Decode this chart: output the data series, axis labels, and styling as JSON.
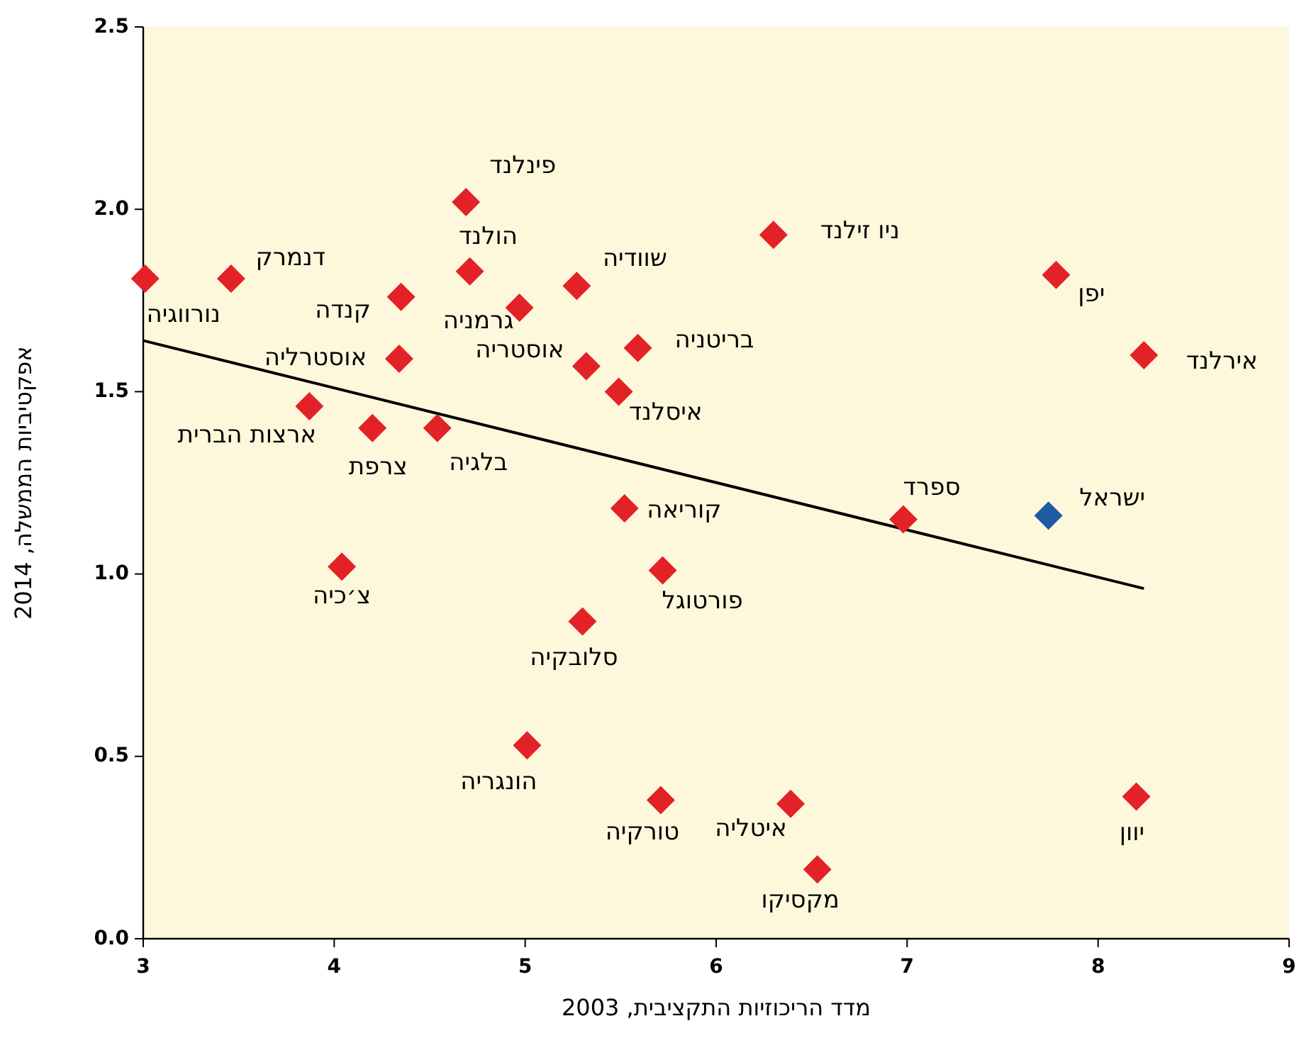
{
  "chart_data": {
    "type": "scatter",
    "xlabel": "מדד הריכוזיות התקציבית, 2003",
    "ylabel": "אפקטיביות הממשלה, 2014",
    "xlim": [
      3,
      9
    ],
    "ylim": [
      0,
      2.5
    ],
    "xticks": [
      3,
      4,
      5,
      6,
      7,
      8,
      9
    ],
    "yticks": [
      {
        "value": 0,
        "label": "0.0"
      },
      {
        "value": 0.5,
        "label": "0.5"
      },
      {
        "value": 1,
        "label": "1.0"
      },
      {
        "value": 1.5,
        "label": "1.5"
      },
      {
        "value": 2,
        "label": "2.0"
      },
      {
        "value": 2.5,
        "label": "2.5"
      }
    ],
    "series": [
      {
        "marker": "diamond",
        "color": "#e32227",
        "x": [
          3.01,
          3.46,
          4.35,
          4.34,
          3.87,
          4.2,
          4.54,
          4.04,
          4.69,
          4.71,
          4.97,
          5.27,
          5.32,
          5.59,
          5.49,
          5.52,
          5.72,
          5.3,
          5.01,
          5.71,
          6.39,
          6.53,
          6.3,
          6.98,
          7.78,
          8.24,
          8.2
        ],
        "values": [
          1.81,
          1.81,
          1.76,
          1.59,
          1.46,
          1.4,
          1.4,
          1.02,
          2.02,
          1.83,
          1.73,
          1.79,
          1.57,
          1.62,
          1.5,
          1.18,
          1.01,
          0.87,
          0.53,
          0.38,
          0.37,
          0.19,
          1.93,
          1.15,
          1.82,
          1.6,
          0.39
        ]
      },
      {
        "marker": "diamond",
        "color": "#1f5aa6",
        "x": [
          7.74
        ],
        "values": [
          1.16
        ]
      },
      {
        "type": "line",
        "marker": "none",
        "color": "#000000",
        "x": [
          3.0,
          8.24
        ],
        "values": [
          1.64,
          0.96
        ]
      }
    ],
    "annotations": [
      {
        "text": "נורווגיה",
        "x": 3.01,
        "y": 1.81
      },
      {
        "text": "דנמרק",
        "x": 3.46,
        "y": 1.81
      },
      {
        "text": "קנדה",
        "x": 4.35,
        "y": 1.76
      },
      {
        "text": "אוסטרליה",
        "x": 4.34,
        "y": 1.59
      },
      {
        "text": "ארצות הברית",
        "x": 3.87,
        "y": 1.46
      },
      {
        "text": "צרפת",
        "x": 4.2,
        "y": 1.4
      },
      {
        "text": "בלגיה",
        "x": 4.54,
        "y": 1.4
      },
      {
        "text": "צ׳כיה",
        "x": 4.04,
        "y": 1.02
      },
      {
        "text": "פינלנד",
        "x": 4.69,
        "y": 2.02
      },
      {
        "text": "הולנד",
        "x": 4.71,
        "y": 1.83
      },
      {
        "text": "גרמניה",
        "x": 4.97,
        "y": 1.73
      },
      {
        "text": "שוודיה",
        "x": 5.27,
        "y": 1.79
      },
      {
        "text": "אוסטריה",
        "x": 5.32,
        "y": 1.57
      },
      {
        "text": "בריטניה",
        "x": 5.59,
        "y": 1.62
      },
      {
        "text": "איסלנד",
        "x": 5.49,
        "y": 1.5
      },
      {
        "text": "קוריאה",
        "x": 5.52,
        "y": 1.18
      },
      {
        "text": "פורטוגל",
        "x": 5.72,
        "y": 1.01
      },
      {
        "text": "סלובקיה",
        "x": 5.3,
        "y": 0.87
      },
      {
        "text": "הונגריה",
        "x": 5.01,
        "y": 0.53
      },
      {
        "text": "טורקיה",
        "x": 5.71,
        "y": 0.38
      },
      {
        "text": "איטליה",
        "x": 6.39,
        "y": 0.37
      },
      {
        "text": "מקסיקו",
        "x": 6.53,
        "y": 0.19
      },
      {
        "text": "ניו זילנד",
        "x": 6.3,
        "y": 1.93
      },
      {
        "text": "ספרד",
        "x": 6.98,
        "y": 1.15
      },
      {
        "text": "יפן",
        "x": 7.78,
        "y": 1.82
      },
      {
        "text": "אירלנד",
        "x": 8.24,
        "y": 1.6
      },
      {
        "text": "יוון",
        "x": 8.2,
        "y": 0.39
      },
      {
        "text": "ישראל",
        "x": 7.74,
        "y": 1.16
      }
    ]
  }
}
